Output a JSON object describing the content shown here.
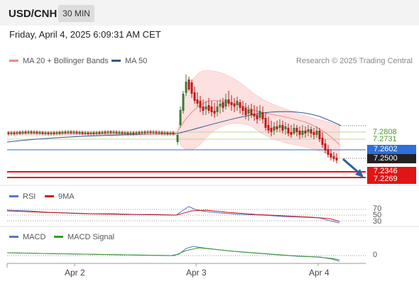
{
  "header": {
    "symbol": "USD/CNH",
    "timeframe": "30 MIN"
  },
  "datetime": "Friday, April 4, 2025 6:09:31 AM CET",
  "legend": {
    "ma20": {
      "label": "MA 20 + Bollinger Bands",
      "color": "#f08a8a"
    },
    "ma50": {
      "label": "MA 50",
      "color": "#34578f"
    }
  },
  "credit": "Research © 2025 Trading Central",
  "price_levels": {
    "green_top": "7.2808",
    "green_bottom": "7.2731",
    "current": "7.2602",
    "pivot": "7.2500",
    "support_1": "7.2346",
    "support_2": "7.2269"
  },
  "rsi_legend": {
    "rsi": "RSI",
    "signal": "9MA"
  },
  "rsi_levels": [
    "70",
    "50",
    "30"
  ],
  "macd_legend": {
    "macd": "MACD",
    "signal": "MACD Signal"
  },
  "macd_zero": "0",
  "x_axis": [
    "Apr 2",
    "Apr 3",
    "Apr 4"
  ],
  "colors": {
    "up": "#3a7a3a",
    "down": "#c01818",
    "support": "#e01515",
    "current_box": "#2e6fd8",
    "pivot_box": "#222222",
    "arrow": "#2e5f9e"
  }
}
